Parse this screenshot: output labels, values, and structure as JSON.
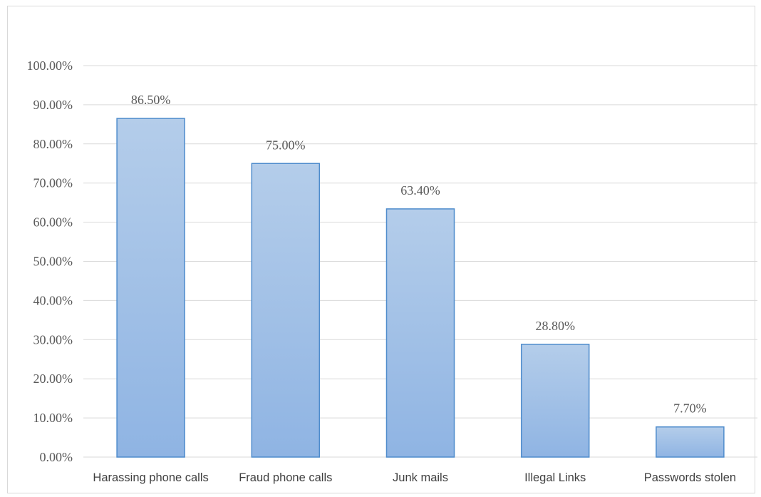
{
  "chart_data": {
    "type": "bar",
    "categories": [
      "Harassing phone calls",
      "Fraud phone calls",
      "Junk mails",
      "Illegal Links",
      "Passwords stolen"
    ],
    "values": [
      86.5,
      75.0,
      63.4,
      28.8,
      7.7
    ],
    "data_labels": [
      "86.50%",
      "75.00%",
      "63.40%",
      "28.80%",
      "7.70%"
    ],
    "yticks": [
      "0.00%",
      "10.00%",
      "20.00%",
      "30.00%",
      "40.00%",
      "50.00%",
      "60.00%",
      "70.00%",
      "80.00%",
      "90.00%",
      "100.00%"
    ],
    "title": "",
    "xlabel": "",
    "ylabel": "",
    "ylim": [
      0,
      100
    ],
    "grid": true,
    "colors": {
      "bar_top": "#b4cdea",
      "bar_bottom": "#8fb4e3",
      "bar_border": "#4f8ccc",
      "grid": "#d9d9d9"
    }
  }
}
